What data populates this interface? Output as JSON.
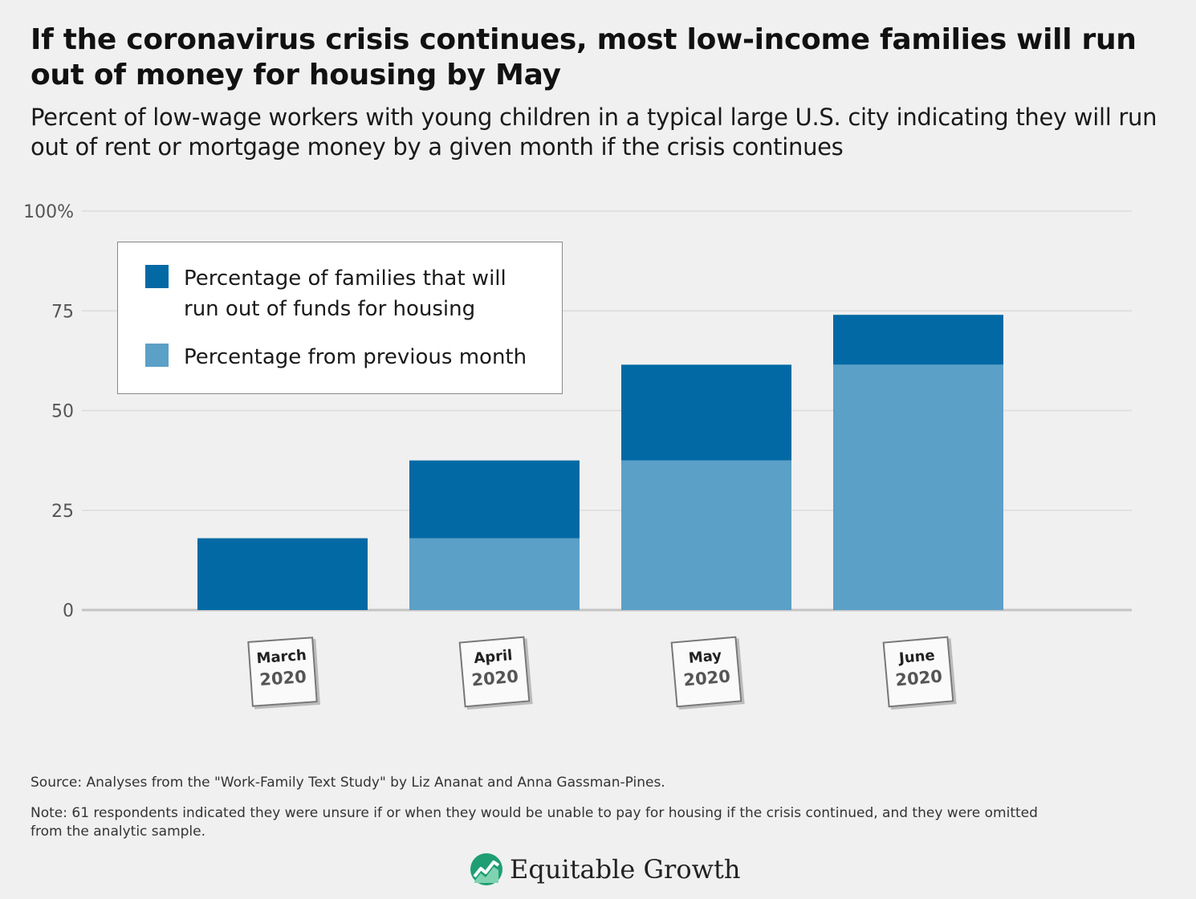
{
  "header": {
    "title": "If the coronavirus crisis continues, most low-income families will run out of money for housing by May",
    "subtitle": "Percent of low-wage workers with young children in a typical large U.S. city indicating they will run out of rent or mortgage money by a given month if the crisis continues"
  },
  "chart_data": {
    "type": "bar",
    "stacked": true,
    "categories": [
      "March 2020",
      "April 2020",
      "May 2020",
      "June 2020"
    ],
    "category_labels": [
      {
        "month": "March",
        "year": "2020"
      },
      {
        "month": "April",
        "year": "2020"
      },
      {
        "month": "May",
        "year": "2020"
      },
      {
        "month": "June",
        "year": "2020"
      }
    ],
    "series": [
      {
        "name": "Percentage from previous month",
        "values": [
          0,
          18,
          37.5,
          61.5
        ],
        "color": "#5ba0c7"
      },
      {
        "name": "Percentage of families that will run out of funds for housing",
        "values": [
          18,
          19.5,
          24,
          12.5
        ],
        "color": "#0269a4"
      }
    ],
    "totals": [
      18,
      37.5,
      61.5,
      74
    ],
    "yticks": [
      0,
      25,
      50,
      75,
      100
    ],
    "ytick_labels": [
      "0",
      "25",
      "50",
      "75",
      "100%"
    ],
    "ylim": [
      0,
      100
    ],
    "grid": true,
    "legend_position": "top-left"
  },
  "legend": {
    "items": [
      {
        "label": "Percentage of families that will run out of funds for housing",
        "color": "#0269a4"
      },
      {
        "label": "Percentage from previous month",
        "color": "#5ba0c7"
      }
    ]
  },
  "footer": {
    "source": "Source: Analyses from the \"Work-Family Text Study\" by Liz Ananat and Anna Gassman-Pines.",
    "note": "Note: 61 respondents indicated they were unsure if or when they would be unable to pay for housing if the crisis continued, and they were omitted from the analytic sample.",
    "brand": "Equitable Growth"
  },
  "colors": {
    "background": "#f0f0f0",
    "dark_blue": "#0269a4",
    "light_blue": "#5ba0c7"
  }
}
